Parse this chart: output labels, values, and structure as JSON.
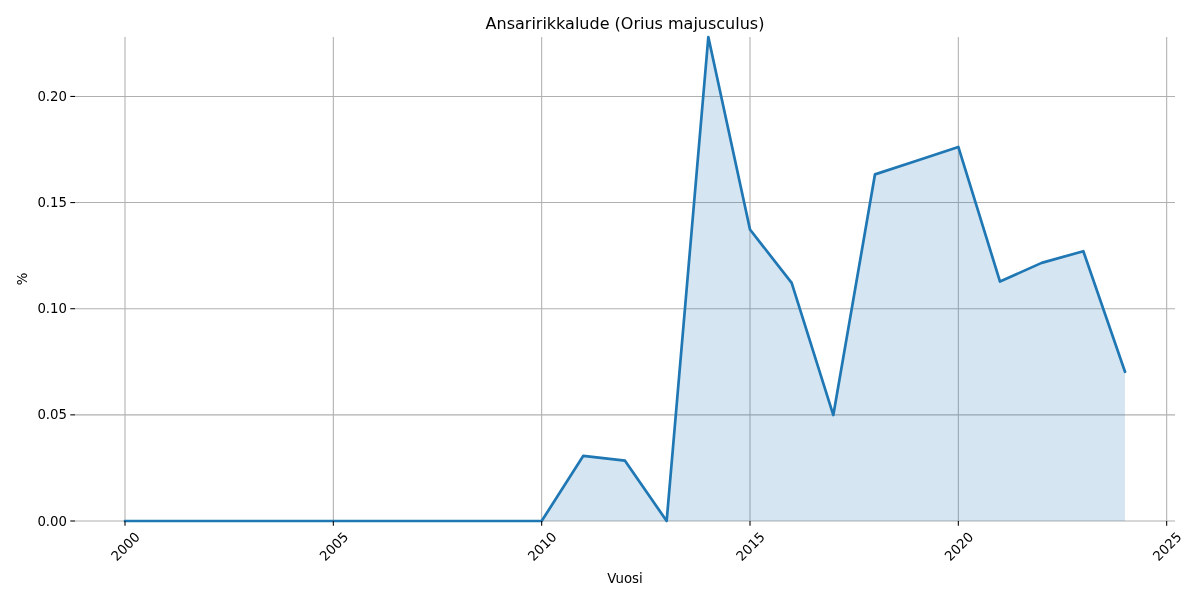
{
  "chart_data": {
    "type": "area",
    "title": "Ansaririkkalude (Orius majusculus)",
    "xlabel": "Vuosi",
    "ylabel": "%",
    "x": [
      2000,
      2001,
      2002,
      2003,
      2004,
      2005,
      2006,
      2007,
      2008,
      2009,
      2010,
      2011,
      2012,
      2013,
      2014,
      2015,
      2016,
      2017,
      2018,
      2019,
      2020,
      2021,
      2022,
      2023,
      2024
    ],
    "series": [
      {
        "color": "#1f77b4",
        "values": [
          0,
          0,
          0,
          0,
          0,
          0,
          0,
          0,
          0,
          0,
          0,
          0.0307,
          0.0284,
          0,
          0.228,
          0.1373,
          0.1122,
          0.0499,
          0.1633,
          0.1697,
          0.1762,
          0.1128,
          0.1216,
          0.1271,
          0.0703
        ]
      }
    ],
    "xlim": [
      1998.8,
      2025.2
    ],
    "ylim": [
      0,
      0.228
    ],
    "xticks": [
      2000,
      2005,
      2010,
      2015,
      2020,
      2025
    ],
    "yticks": [
      {
        "value": 0,
        "label": "0.00"
      },
      {
        "value": 0.05,
        "label": "0.05"
      },
      {
        "value": 0.1,
        "label": "0.10"
      },
      {
        "value": 0.15,
        "label": "0.15"
      },
      {
        "value": 0.2,
        "label": "0.20"
      }
    ],
    "grid": true
  }
}
